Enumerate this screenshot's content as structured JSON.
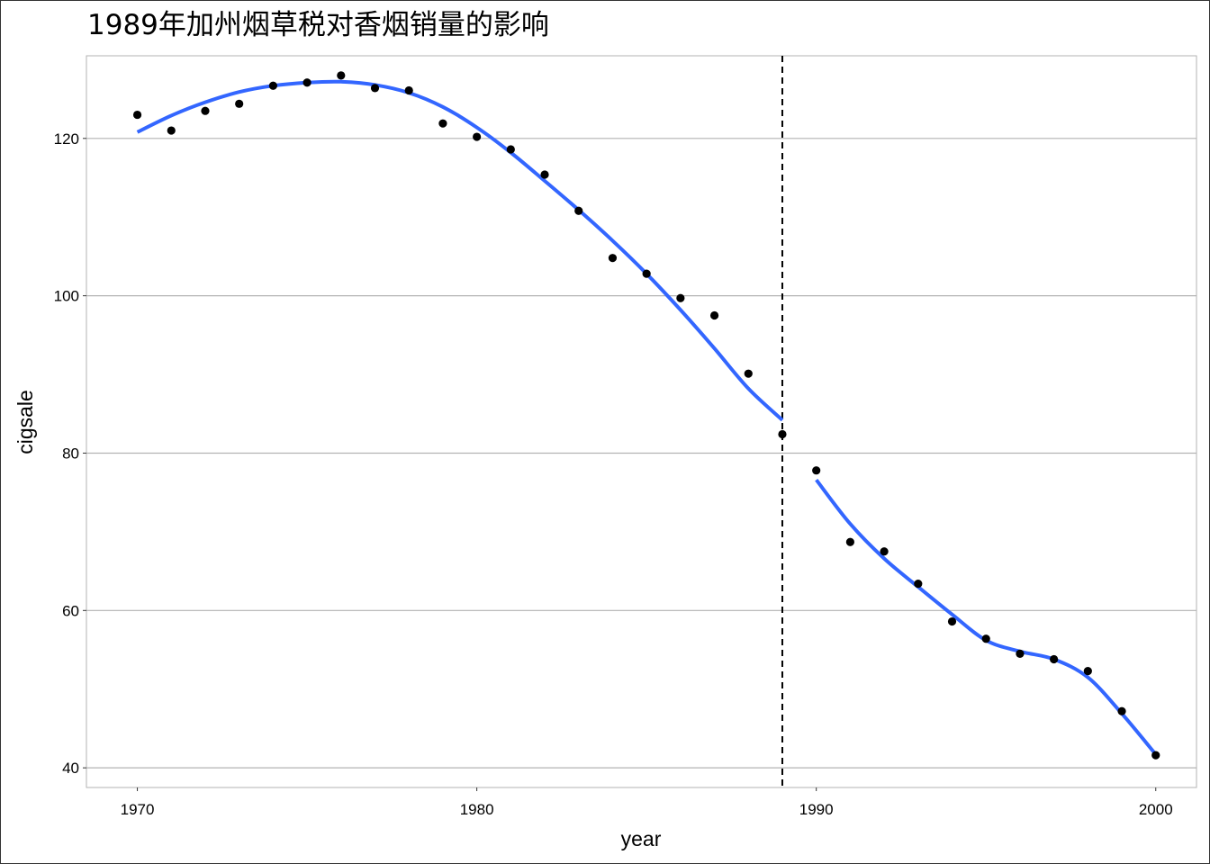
{
  "chart_data": {
    "type": "scatter",
    "title": "1989年加州烟草税对香烟销量的影响",
    "xlabel": "year",
    "ylabel": "cigsale",
    "xlim": [
      1968.5,
      2001.2
    ],
    "ylim": [
      37.5,
      130.5
    ],
    "x_ticks": [
      1970,
      1980,
      1990,
      2000
    ],
    "y_ticks": [
      40,
      60,
      80,
      100,
      120
    ],
    "grid": "horizontal major lines",
    "legend": "none",
    "colors": {
      "points": "#000000",
      "smooth_line": "#3366ff",
      "grid": "#b3b3b3",
      "vline": "#000000"
    },
    "points": {
      "x": [
        1970,
        1971,
        1972,
        1973,
        1974,
        1975,
        1976,
        1977,
        1978,
        1979,
        1980,
        1981,
        1982,
        1983,
        1984,
        1985,
        1986,
        1987,
        1988,
        1989,
        1990,
        1991,
        1992,
        1993,
        1994,
        1995,
        1996,
        1997,
        1998,
        1999,
        2000
      ],
      "y": [
        123.0,
        121.0,
        123.5,
        124.4,
        126.7,
        127.1,
        128.0,
        126.4,
        126.1,
        121.9,
        120.2,
        118.6,
        115.4,
        110.8,
        104.8,
        102.8,
        99.7,
        97.5,
        90.1,
        82.4,
        77.8,
        68.7,
        67.5,
        63.4,
        58.6,
        56.4,
        54.5,
        53.8,
        52.3,
        47.2,
        41.6
      ]
    },
    "smooth_series": [
      {
        "segment": "pre-1989",
        "x": [
          1970.0,
          1971.0,
          1972.0,
          1973.0,
          1974.0,
          1975.0,
          1976.0,
          1977.0,
          1978.0,
          1979.0,
          1980.0,
          1981.0,
          1982.0,
          1983.0,
          1984.0,
          1985.0,
          1986.0,
          1987.0,
          1988.0,
          1989.0
        ],
        "y": [
          120.8,
          122.9,
          124.6,
          125.9,
          126.7,
          127.1,
          127.2,
          126.8,
          125.8,
          124.0,
          121.4,
          118.2,
          114.6,
          110.9,
          107.0,
          102.8,
          98.2,
          93.3,
          88.2,
          84.2
        ]
      },
      {
        "segment": "post-1989",
        "x": [
          1990.0,
          1991.0,
          1992.0,
          1993.0,
          1994.0,
          1995.0,
          1996.0,
          1997.0,
          1998.0,
          1999.0,
          2000.0
        ],
        "y": [
          76.6,
          71.0,
          66.6,
          63.0,
          59.5,
          56.2,
          54.8,
          53.8,
          51.5,
          46.9,
          41.7
        ]
      }
    ],
    "reference_line": {
      "orientation": "vertical",
      "x": 1989,
      "style": "dashed"
    }
  }
}
